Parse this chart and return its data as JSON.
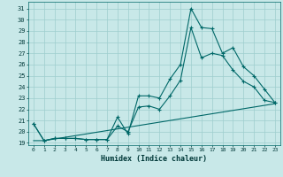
{
  "title": "",
  "xlabel": "Humidex (Indice chaleur)",
  "background_color": "#c8e8e8",
  "grid_color": "#9ecece",
  "line_color": "#006868",
  "xlim": [
    -0.5,
    23.5
  ],
  "ylim": [
    18.8,
    31.6
  ],
  "yticks": [
    19,
    20,
    21,
    22,
    23,
    24,
    25,
    26,
    27,
    28,
    29,
    30,
    31
  ],
  "xticks": [
    0,
    1,
    2,
    3,
    4,
    5,
    6,
    7,
    8,
    9,
    10,
    11,
    12,
    13,
    14,
    15,
    16,
    17,
    18,
    19,
    20,
    21,
    22,
    23
  ],
  "series1_x": [
    0,
    1,
    2,
    3,
    4,
    5,
    6,
    7,
    8,
    9,
    10,
    11,
    12,
    13,
    14,
    15,
    16,
    17,
    18,
    19,
    20,
    21,
    22,
    23
  ],
  "series1_y": [
    20.7,
    19.2,
    19.4,
    19.4,
    19.4,
    19.3,
    19.3,
    19.3,
    21.3,
    19.8,
    23.2,
    23.2,
    23.0,
    24.7,
    26.0,
    31.0,
    29.3,
    29.2,
    27.0,
    27.5,
    25.8,
    25.0,
    23.8,
    22.6
  ],
  "series2_x": [
    0,
    1,
    2,
    3,
    4,
    5,
    6,
    7,
    8,
    9,
    10,
    11,
    12,
    13,
    14,
    15,
    16,
    17,
    18,
    19,
    20,
    21,
    22,
    23
  ],
  "series2_y": [
    20.7,
    19.2,
    19.4,
    19.4,
    19.4,
    19.3,
    19.3,
    19.3,
    20.5,
    20.0,
    22.2,
    22.3,
    22.0,
    23.2,
    24.6,
    29.3,
    26.6,
    27.0,
    26.8,
    25.5,
    24.5,
    24.0,
    22.8,
    22.6
  ],
  "series3_x": [
    0,
    1,
    2,
    3,
    4,
    5,
    6,
    7,
    8,
    9,
    10,
    11,
    12,
    13,
    14,
    15,
    16,
    17,
    18,
    19,
    20,
    21,
    22,
    23
  ],
  "series3_y": [
    19.2,
    19.2,
    19.35,
    19.5,
    19.65,
    19.8,
    19.95,
    20.1,
    20.25,
    20.4,
    20.55,
    20.7,
    20.85,
    21.0,
    21.15,
    21.3,
    21.45,
    21.6,
    21.75,
    21.9,
    22.05,
    22.2,
    22.35,
    22.5
  ]
}
